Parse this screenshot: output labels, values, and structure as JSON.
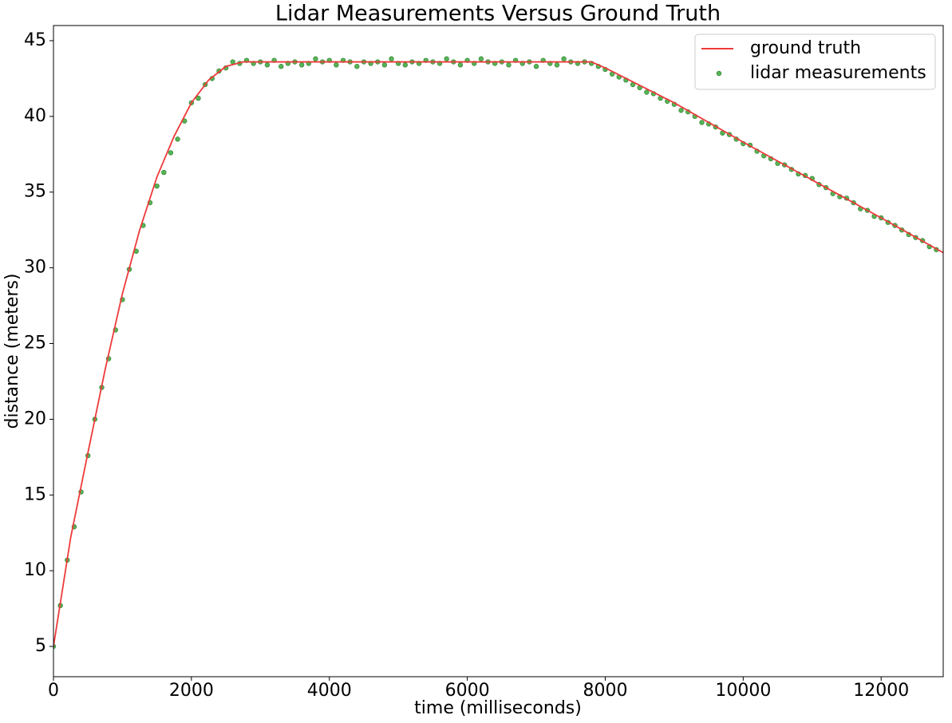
{
  "chart_data": {
    "type": "line",
    "title": "Lidar Measurements Versus Ground Truth",
    "xlabel": "time (milliseconds)",
    "ylabel": "distance (meters)",
    "xlim": [
      0,
      12900
    ],
    "ylim": [
      3,
      46
    ],
    "xticks": [
      0,
      2000,
      4000,
      6000,
      8000,
      10000,
      12000
    ],
    "yticks": [
      5,
      10,
      15,
      20,
      25,
      30,
      35,
      40,
      45
    ],
    "grid": false,
    "legend": "upper right",
    "series": [
      {
        "name": "ground truth",
        "type": "line",
        "color": "#ee3a3a",
        "x": [
          0,
          250,
          500,
          750,
          1000,
          1250,
          1500,
          1750,
          2000,
          2250,
          2500,
          2750,
          7800,
          8000,
          9000,
          10000,
          11000,
          12000,
          12900
        ],
        "values": [
          5,
          12.2,
          17.8,
          23.3,
          28.3,
          32.5,
          36,
          38.7,
          40.9,
          42.4,
          43.3,
          43.6,
          43.6,
          43.2,
          40.9,
          38.3,
          35.8,
          33.3,
          31
        ]
      },
      {
        "name": "lidar measurements",
        "type": "scatter",
        "color": "#55b555",
        "x": [
          0,
          100,
          200,
          300,
          400,
          500,
          600,
          700,
          800,
          900,
          1000,
          1100,
          1200,
          1300,
          1400,
          1500,
          1600,
          1700,
          1800,
          1900,
          2000,
          2100,
          2200,
          2300,
          2400,
          2500,
          2600,
          2700,
          2800,
          2900,
          3000,
          3100,
          3200,
          3300,
          3400,
          3500,
          3600,
          3700,
          3800,
          3900,
          4000,
          4100,
          4200,
          4300,
          4400,
          4500,
          4600,
          4700,
          4800,
          4900,
          5000,
          5100,
          5200,
          5300,
          5400,
          5500,
          5600,
          5700,
          5800,
          5900,
          6000,
          6100,
          6200,
          6300,
          6400,
          6500,
          6600,
          6700,
          6800,
          6900,
          7000,
          7100,
          7200,
          7300,
          7400,
          7500,
          7600,
          7700,
          7800,
          7900,
          8000,
          8100,
          8200,
          8300,
          8400,
          8500,
          8600,
          8700,
          8800,
          8900,
          9000,
          9100,
          9200,
          9300,
          9400,
          9500,
          9600,
          9700,
          9800,
          9900,
          10000,
          10100,
          10200,
          10300,
          10400,
          10500,
          10600,
          10700,
          10800,
          10900,
          11000,
          11100,
          11200,
          11300,
          11400,
          11500,
          11600,
          11700,
          11800,
          11900,
          12000,
          12100,
          12200,
          12300,
          12400,
          12500,
          12600,
          12700,
          12800
        ],
        "values": [
          5,
          7.7,
          10.7,
          12.9,
          15.2,
          17.6,
          20,
          22.1,
          24,
          25.9,
          27.9,
          29.9,
          31.1,
          32.8,
          34.3,
          35.4,
          36.3,
          37.6,
          38.5,
          39.7,
          40.9,
          41.2,
          42.1,
          42.5,
          43,
          43.2,
          43.6,
          43.5,
          43.7,
          43.5,
          43.6,
          43.4,
          43.7,
          43.3,
          43.5,
          43.6,
          43.4,
          43.5,
          43.8,
          43.6,
          43.7,
          43.4,
          43.7,
          43.6,
          43.3,
          43.6,
          43.5,
          43.6,
          43.4,
          43.8,
          43.5,
          43.4,
          43.6,
          43.5,
          43.7,
          43.6,
          43.5,
          43.8,
          43.6,
          43.4,
          43.7,
          43.5,
          43.8,
          43.6,
          43.5,
          43.6,
          43.4,
          43.7,
          43.5,
          43.6,
          43.3,
          43.7,
          43.5,
          43.4,
          43.8,
          43.6,
          43.5,
          43.6,
          43.5,
          43.3,
          43.1,
          42.8,
          42.6,
          42.4,
          42.1,
          41.9,
          41.6,
          41.5,
          41.2,
          41,
          40.8,
          40.4,
          40.3,
          40,
          39.6,
          39.5,
          39.3,
          38.9,
          38.8,
          38.5,
          38.2,
          38.1,
          37.7,
          37.4,
          37.2,
          36.9,
          36.8,
          36.5,
          36.2,
          36.1,
          35.9,
          35.5,
          35.3,
          34.9,
          34.7,
          34.6,
          34.3,
          33.9,
          33.8,
          33.4,
          33.3,
          33,
          32.8,
          32.5,
          32.2,
          32,
          31.8,
          31.4,
          31.2
        ]
      }
    ]
  }
}
